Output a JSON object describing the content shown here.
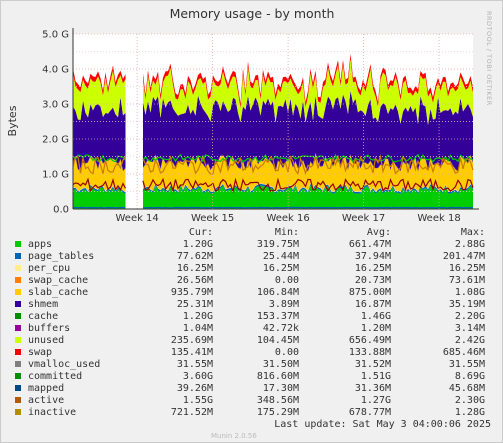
{
  "chart_data": {
    "type": "area",
    "title": "Memory usage - by month",
    "ylabel": "Bytes",
    "side_text": "RRDTOOL / TOBI OETIKER",
    "ylim": [
      0,
      5.0
    ],
    "y_unit": "G",
    "y_ticks": [
      "0.0",
      "1.0 G",
      "2.0 G",
      "3.0 G",
      "4.0 G",
      "5.0 G"
    ],
    "x_ticks": [
      "Week 14",
      "Week 15",
      "Week 16",
      "Week 17",
      "Week 18"
    ],
    "x_tick_weeks": [
      14,
      15,
      16,
      17,
      18
    ],
    "xlim_weeks": [
      13.15,
      18.45
    ],
    "gap_weeks": [
      13.85,
      14.05
    ],
    "stack_layers": [
      {
        "name": "apps",
        "color": "#00cc00",
        "approx_G": 0.55
      },
      {
        "name": "page_tables",
        "color": "#0066b3",
        "approx_G": 0.05
      },
      {
        "name": "per_cpu",
        "color": "#ffee66",
        "approx_G": 0.02
      },
      {
        "name": "swap_cache",
        "color": "#ff8000",
        "approx_G": 0.01
      },
      {
        "name": "slab_cache",
        "color": "#ffcc00",
        "approx_G": 0.7
      },
      {
        "name": "shmem",
        "color": "#330099",
        "approx_G": 0.02
      },
      {
        "name": "cache",
        "color": "#330099",
        "approx_G": 1.55
      },
      {
        "name": "buffers",
        "color": "#990099",
        "approx_G": 0.01
      },
      {
        "name": "unused",
        "color": "#ccff00",
        "approx_G": 0.65
      },
      {
        "name": "swap",
        "color": "#ff0000",
        "approx_G": 0.14
      }
    ],
    "line_series": [
      "committed",
      "mapped",
      "active",
      "inactive"
    ]
  },
  "legend": {
    "headers": {
      "cur": "Cur:",
      "min": "Min:",
      "avg": "Avg:",
      "max": "Max:"
    },
    "rows": [
      {
        "name": "apps",
        "color": "#00cc00",
        "cur": "1.20G",
        "min": "319.75M",
        "avg": "661.47M",
        "max": "2.88G"
      },
      {
        "name": "page_tables",
        "color": "#0066b3",
        "cur": "77.62M",
        "min": "25.44M",
        "avg": "37.94M",
        "max": "201.47M"
      },
      {
        "name": "per_cpu",
        "color": "#ffee88",
        "cur": "16.25M",
        "min": "16.25M",
        "avg": "16.25M",
        "max": "16.25M"
      },
      {
        "name": "swap_cache",
        "color": "#ff8000",
        "cur": "26.56M",
        "min": "0.00",
        "avg": "20.73M",
        "max": "73.61M"
      },
      {
        "name": "slab_cache",
        "color": "#ffcc00",
        "cur": "935.79M",
        "min": "106.84M",
        "avg": "875.00M",
        "max": "1.08G"
      },
      {
        "name": "shmem",
        "color": "#330099",
        "cur": "25.31M",
        "min": "3.89M",
        "avg": "16.87M",
        "max": "35.19M"
      },
      {
        "name": "cache",
        "color": "#008f00",
        "cur": "1.20G",
        "min": "153.37M",
        "avg": "1.46G",
        "max": "2.20G"
      },
      {
        "name": "buffers",
        "color": "#990099",
        "cur": "1.04M",
        "min": "42.72k",
        "avg": "1.20M",
        "max": "3.14M"
      },
      {
        "name": "unused",
        "color": "#ccff00",
        "cur": "235.69M",
        "min": "104.45M",
        "avg": "656.49M",
        "max": "2.42G"
      },
      {
        "name": "swap",
        "color": "#ff0000",
        "cur": "135.41M",
        "min": "0.00",
        "avg": "133.88M",
        "max": "685.46M"
      },
      {
        "name": "vmalloc_used",
        "color": "#808080",
        "cur": "31.55M",
        "min": "31.50M",
        "avg": "31.52M",
        "max": "31.55M"
      },
      {
        "name": "committed",
        "color": "#008f00",
        "cur": "3.60G",
        "min": "816.60M",
        "avg": "1.51G",
        "max": "8.69G"
      },
      {
        "name": "mapped",
        "color": "#00487d",
        "cur": "39.26M",
        "min": "17.30M",
        "avg": "31.36M",
        "max": "45.68M"
      },
      {
        "name": "active",
        "color": "#b35a00",
        "cur": "1.55G",
        "min": "348.56M",
        "avg": "1.27G",
        "max": "2.30G"
      },
      {
        "name": "inactive",
        "color": "#b38f00",
        "cur": "721.52M",
        "min": "175.29M",
        "avg": "678.77M",
        "max": "1.28G"
      }
    ]
  },
  "last_update": "Last update: Sat May  3 04:00:06 2025",
  "footer": "Munin 2.0.56"
}
